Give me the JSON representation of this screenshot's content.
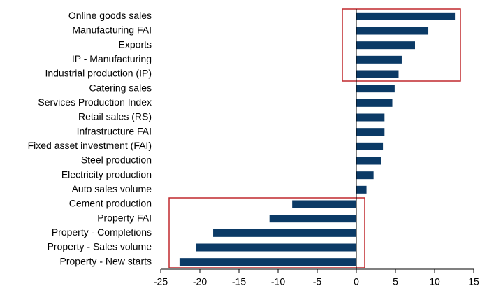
{
  "chart_data": {
    "type": "barh",
    "categories": [
      "Online goods sales",
      "Manufacturing FAI",
      "Exports",
      "IP - Manufacturing",
      "Industrial production (IP)",
      "Catering sales",
      "Services Production Index",
      "Retail sales (RS)",
      "Infrastructure FAI",
      "Fixed asset investment (FAI)",
      "Steel production",
      "Electricity production",
      "Auto sales volume",
      "Cement production",
      "Property FAI",
      "Property - Completions",
      "Property - Sales volume",
      "Property - New starts"
    ],
    "values": [
      12.6,
      9.2,
      7.5,
      5.8,
      5.4,
      4.9,
      4.6,
      3.6,
      3.6,
      3.4,
      3.2,
      2.2,
      1.3,
      -8.2,
      -11.1,
      -18.3,
      -20.5,
      -22.6
    ],
    "color": "#0b3a66",
    "xlim": [
      -25,
      15
    ],
    "xticks": [
      -25,
      -20,
      -15,
      -10,
      -5,
      0,
      5,
      10,
      15
    ]
  }
}
